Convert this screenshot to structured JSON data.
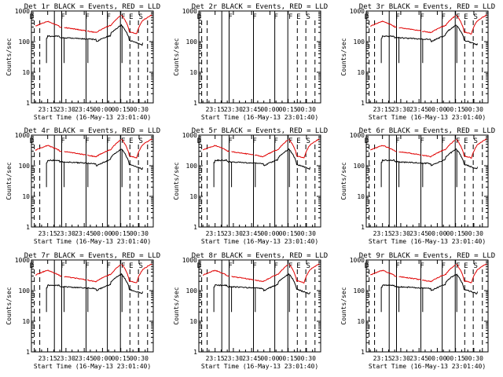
{
  "page": {
    "background": "#ffffff"
  },
  "colors": {
    "black_series": "#000000",
    "red_series": "#e00000",
    "frame": "#000000"
  },
  "axes": {
    "ylabel": "Counts/sec",
    "xlabel": "Start Time (16-May-13 23:01:40)",
    "y_scale": "log",
    "ylim": [
      1,
      1000
    ],
    "y_ticks": [
      "1",
      "10",
      "100",
      "1000"
    ],
    "x_ticks": [
      "23:15",
      "23:30",
      "23:45",
      "00:00",
      "00:15",
      "00:30"
    ],
    "xlim": [
      "23:01:40",
      "00:41:40"
    ]
  },
  "chart_data": [
    {
      "type": "line",
      "title": "Det 1r BLACK = Events, RED = LLD",
      "markers": [
        "D",
        "F",
        "F",
        "F",
        "F",
        "E",
        "S"
      ]
    },
    {
      "type": "line",
      "title": "Det 2r BLACK = Events, RED = LLD",
      "markers": [
        "D",
        "F",
        "F",
        "F",
        "F",
        "E",
        "S"
      ]
    },
    {
      "type": "line",
      "title": "Det 3r BLACK = Events, RED = LLD",
      "markers": [
        "D",
        "F",
        "F",
        "F",
        "F",
        "E",
        "S"
      ]
    },
    {
      "type": "line",
      "title": "Det 4r BLACK = Events, RED = LLD",
      "markers": [
        "D",
        "F",
        "F",
        "F",
        "F",
        "E",
        "S"
      ]
    },
    {
      "type": "line",
      "title": "Det 5r BLACK = Events, RED = LLD",
      "markers": [
        "D",
        "F",
        "F",
        "F",
        "F",
        "E",
        "S"
      ]
    },
    {
      "type": "line",
      "title": "Det 6r BLACK = Events, RED = LLD",
      "markers": [
        "D",
        "F",
        "F",
        "F",
        "F",
        "E",
        "S"
      ]
    },
    {
      "type": "line",
      "title": "Det 7r BLACK = Events, RED = LLD",
      "markers": [
        "D",
        "F",
        "F",
        "F",
        "F",
        "E",
        "S"
      ]
    },
    {
      "type": "line",
      "title": "Det 8r BLACK = Events, RED = LLD",
      "markers": [
        "D",
        "F",
        "F",
        "F",
        "F",
        "E",
        "S"
      ]
    },
    {
      "type": "line",
      "title": "Det 9r BLACK = Events, RED = LLD",
      "markers": [
        "D",
        "F",
        "F",
        "F",
        "F",
        "E",
        "S"
      ]
    }
  ]
}
